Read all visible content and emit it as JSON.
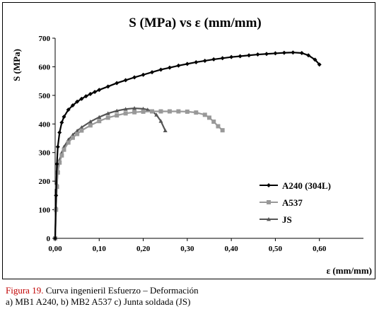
{
  "chart_data": {
    "type": "line",
    "title": "S (MPa) vs ε (mm/mm)",
    "xlabel": "ε (mm/mm)",
    "ylabel": "S (MPa)",
    "xlim": [
      0,
      0.7
    ],
    "ylim": [
      0,
      700
    ],
    "xticks": [
      "0,00",
      "0,10",
      "0,20",
      "0,30",
      "0,40",
      "0,50",
      "0,60"
    ],
    "xtick_values": [
      0,
      0.1,
      0.2,
      0.3,
      0.4,
      0.5,
      0.6
    ],
    "yticks": [
      "0",
      "100",
      "200",
      "300",
      "400",
      "500",
      "600",
      "700"
    ],
    "ytick_values": [
      0,
      100,
      200,
      300,
      400,
      500,
      600,
      700
    ],
    "grid": false,
    "legend_position": "bottom-right",
    "series": [
      {
        "name": "A240 (304L)",
        "color": "#000000",
        "marker": "diamond",
        "x": [
          0,
          0.002,
          0.004,
          0.006,
          0.01,
          0.015,
          0.02,
          0.03,
          0.04,
          0.05,
          0.06,
          0.07,
          0.08,
          0.09,
          0.1,
          0.12,
          0.14,
          0.16,
          0.18,
          0.2,
          0.22,
          0.24,
          0.26,
          0.28,
          0.3,
          0.32,
          0.34,
          0.36,
          0.38,
          0.4,
          0.42,
          0.44,
          0.46,
          0.48,
          0.5,
          0.52,
          0.54,
          0.56,
          0.575,
          0.59,
          0.6
        ],
        "y": [
          0,
          150,
          260,
          320,
          370,
          405,
          425,
          450,
          465,
          478,
          488,
          497,
          505,
          512,
          519,
          531,
          543,
          553,
          563,
          572,
          581,
          590,
          597,
          604,
          610,
          616,
          621,
          626,
          630,
          634,
          637,
          640,
          643,
          645,
          647,
          649,
          650,
          648,
          640,
          625,
          608
        ]
      },
      {
        "name": "A537",
        "color": "#999999",
        "marker": "square",
        "x": [
          0,
          0.002,
          0.004,
          0.006,
          0.01,
          0.015,
          0.02,
          0.03,
          0.04,
          0.05,
          0.06,
          0.08,
          0.1,
          0.12,
          0.14,
          0.16,
          0.18,
          0.2,
          0.22,
          0.24,
          0.26,
          0.28,
          0.3,
          0.32,
          0.34,
          0.35,
          0.36,
          0.37,
          0.38
        ],
        "y": [
          0,
          100,
          180,
          230,
          265,
          290,
          310,
          335,
          352,
          365,
          377,
          395,
          410,
          422,
          430,
          437,
          441,
          443,
          444,
          444,
          444,
          444,
          443,
          440,
          432,
          422,
          408,
          392,
          378
        ]
      },
      {
        "name": "JS",
        "color": "#555555",
        "marker": "triangle",
        "x": [
          0,
          0.002,
          0.004,
          0.006,
          0.01,
          0.015,
          0.02,
          0.03,
          0.04,
          0.05,
          0.06,
          0.08,
          0.1,
          0.12,
          0.14,
          0.16,
          0.18,
          0.2,
          0.21,
          0.22,
          0.23,
          0.24,
          0.25
        ],
        "y": [
          0,
          110,
          190,
          240,
          275,
          300,
          320,
          345,
          362,
          376,
          388,
          408,
          424,
          437,
          446,
          452,
          455,
          453,
          450,
          444,
          432,
          410,
          377
        ]
      }
    ]
  },
  "caption": {
    "figure_label": "Figura 19.",
    "line1": " Curva ingenieril Esfuerzo – Deformación",
    "line2": "a) MB1 A240, b) MB2 A537 c) Junta soldada (JS)"
  }
}
